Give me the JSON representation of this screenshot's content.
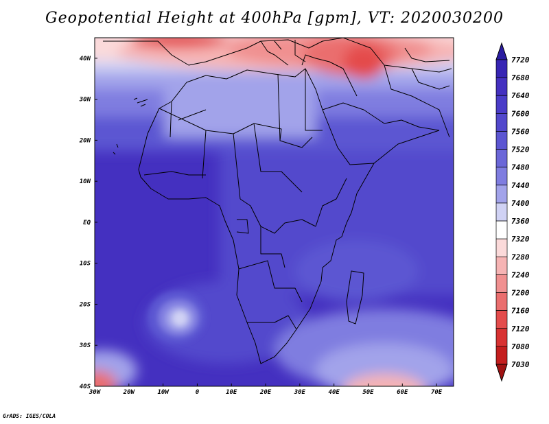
{
  "title": "Geopotential Height at 400hPa [gpm], VT: 2020030200",
  "credit": "GrADS: IGES/COLA",
  "map": {
    "lon_range": [
      -30,
      75
    ],
    "lat_range": [
      -40,
      45
    ],
    "lon_ticks": [
      {
        "value": -30,
        "label": "30W"
      },
      {
        "value": -20,
        "label": "20W"
      },
      {
        "value": -10,
        "label": "10W"
      },
      {
        "value": 0,
        "label": "0"
      },
      {
        "value": 10,
        "label": "10E"
      },
      {
        "value": 20,
        "label": "20E"
      },
      {
        "value": 30,
        "label": "30E"
      },
      {
        "value": 40,
        "label": "40E"
      },
      {
        "value": 50,
        "label": "50E"
      },
      {
        "value": 60,
        "label": "60E"
      },
      {
        "value": 70,
        "label": "70E"
      }
    ],
    "lat_ticks": [
      {
        "value": 40,
        "label": "40N"
      },
      {
        "value": 30,
        "label": "30N"
      },
      {
        "value": 20,
        "label": "20N"
      },
      {
        "value": 10,
        "label": "10N"
      },
      {
        "value": 0,
        "label": "EQ"
      },
      {
        "value": -10,
        "label": "10S"
      },
      {
        "value": -20,
        "label": "20S"
      },
      {
        "value": -30,
        "label": "30S"
      },
      {
        "value": -40,
        "label": "40S"
      }
    ]
  },
  "colorbar": {
    "levels": [
      "7720",
      "7680",
      "7640",
      "7600",
      "7560",
      "7520",
      "7480",
      "7440",
      "7400",
      "7360",
      "7320",
      "7280",
      "7240",
      "7200",
      "7160",
      "7120",
      "7080",
      "7030"
    ],
    "colors": [
      "#2a1ca0",
      "#3725b4",
      "#4430c0",
      "#4a3cc8",
      "#5248cc",
      "#5c56d2",
      "#6b67d8",
      "#7f7de0",
      "#a2a3ea",
      "#d0d2f4",
      "#ffffff",
      "#fbdada",
      "#f6b4b4",
      "#f09090",
      "#ea6e6e",
      "#e44c4c",
      "#d83232",
      "#c41e1e",
      "#a01212"
    ]
  }
}
